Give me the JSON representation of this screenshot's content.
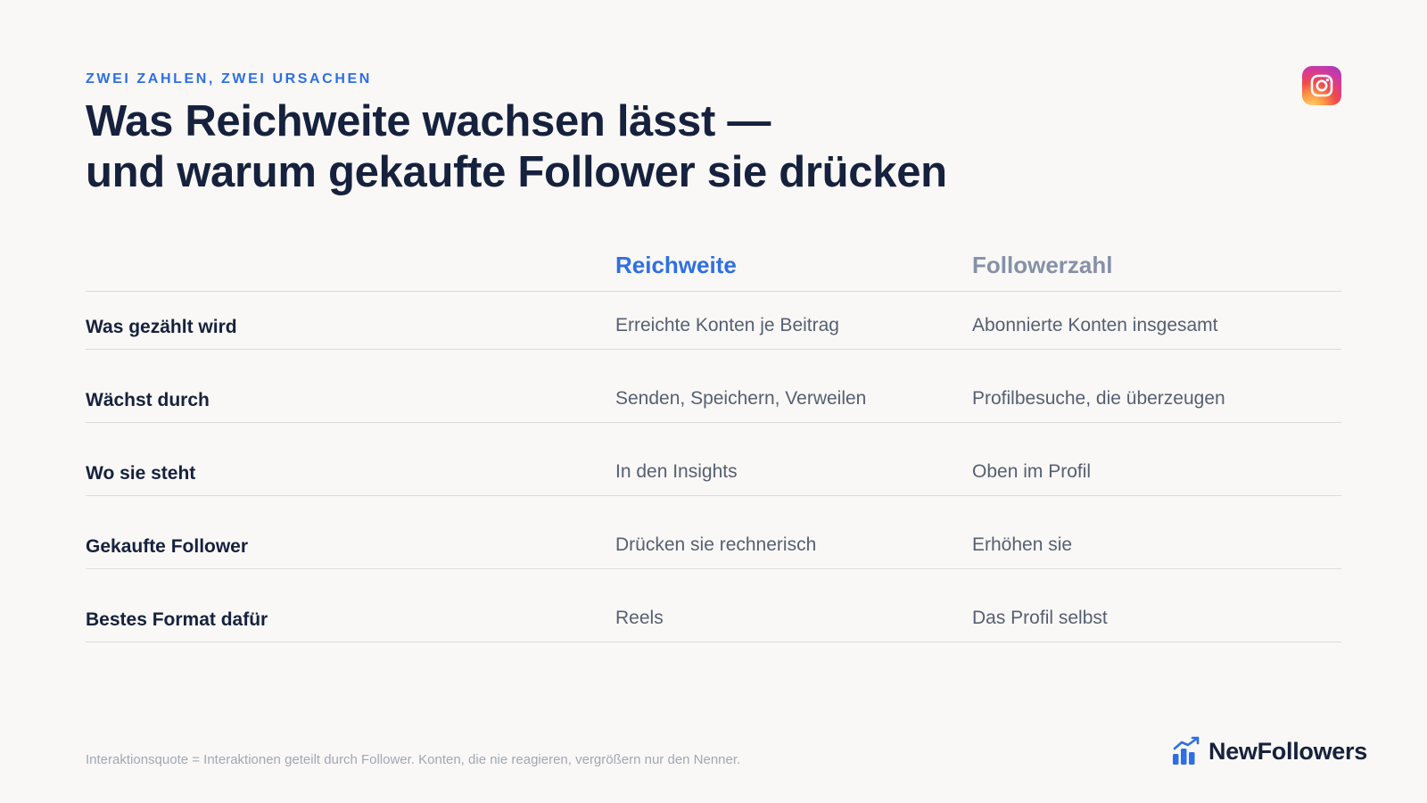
{
  "eyebrow": "ZWEI ZAHLEN, ZWEI URSACHEN",
  "title": {
    "line1": "Was Reichweite wachsen lässt —",
    "line2": "und warum gekaufte Follower sie drücken"
  },
  "table": {
    "columns": [
      "Reichweite",
      "Followerzahl"
    ],
    "rows": [
      {
        "label": "Was gezählt wird",
        "reach": "Erreichte Konten je Beitrag",
        "followers": "Abonnierte Konten insgesamt"
      },
      {
        "label": "Wächst durch",
        "reach": "Senden, Speichern, Verweilen",
        "followers": "Profilbesuche, die überzeugen"
      },
      {
        "label": "Wo sie steht",
        "reach": "In den Insights",
        "followers": "Oben im Profil"
      },
      {
        "label": "Gekaufte Follower",
        "reach": "Drücken sie rechnerisch",
        "followers": "Erhöhen sie"
      },
      {
        "label": "Bestes Format dafür",
        "reach": "Reels",
        "followers": "Das Profil selbst"
      }
    ]
  },
  "footnote": "Interaktionsquote = Interaktionen geteilt durch Follower. Konten, die nie reagieren, vergrößern nur den Nenner.",
  "brand": {
    "name": "NewFollowers"
  },
  "icons": {
    "platform": "instagram-icon",
    "brand": "growth-chart-icon"
  },
  "colors": {
    "accent": "#2f6fe4",
    "muted": "#8691a8",
    "text": "#16213d",
    "background": "#f9f8f6"
  }
}
